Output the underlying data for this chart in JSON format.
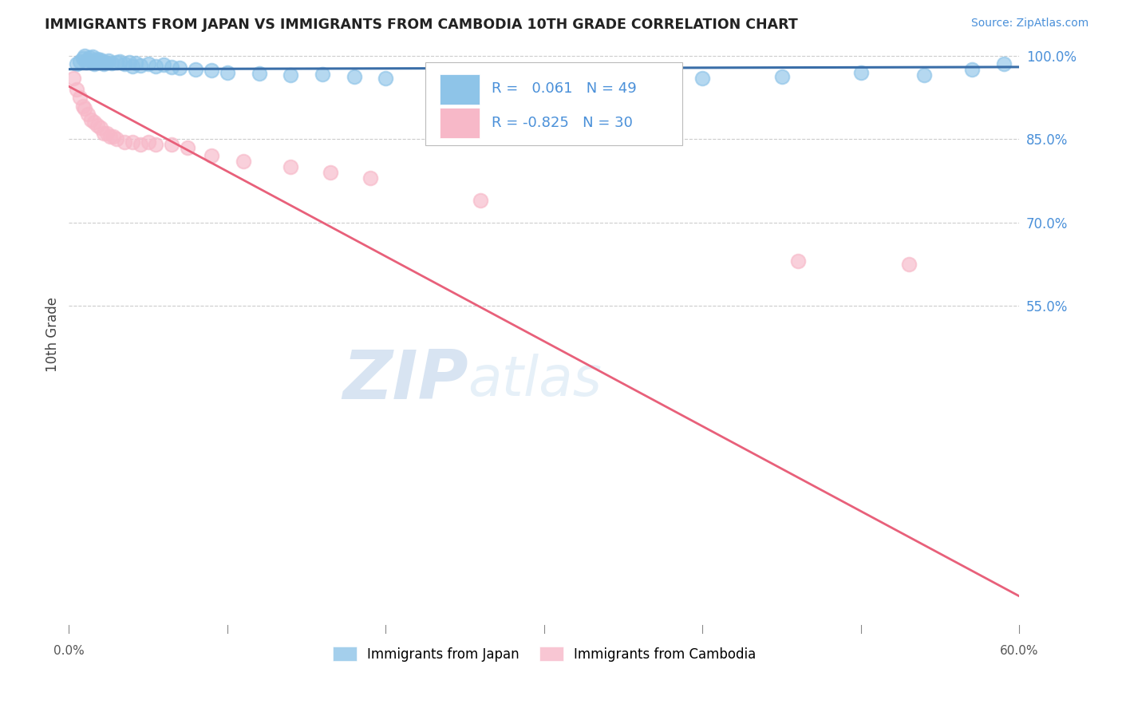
{
  "title": "IMMIGRANTS FROM JAPAN VS IMMIGRANTS FROM CAMBODIA 10TH GRADE CORRELATION CHART",
  "source": "Source: ZipAtlas.com",
  "ylabel": "10th Grade",
  "r_japan": 0.061,
  "n_japan": 49,
  "r_cambodia": -0.825,
  "n_cambodia": 30,
  "japan_color": "#8ec4e8",
  "cambodia_color": "#f7b8c8",
  "japan_line_color": "#3a6ea8",
  "cambodia_line_color": "#e8607a",
  "watermark_zip": "ZIP",
  "watermark_atlas": "atlas",
  "x_min": 0.0,
  "x_max": 0.6,
  "y_min": -0.02,
  "y_max": 1.015,
  "japan_scatter_x": [
    0.005,
    0.007,
    0.009,
    0.01,
    0.011,
    0.012,
    0.013,
    0.014,
    0.015,
    0.016,
    0.017,
    0.018,
    0.019,
    0.02,
    0.021,
    0.022,
    0.023,
    0.025,
    0.027,
    0.03,
    0.032,
    0.035,
    0.038,
    0.04,
    0.042,
    0.045,
    0.05,
    0.055,
    0.06,
    0.065,
    0.07,
    0.08,
    0.09,
    0.1,
    0.12,
    0.14,
    0.16,
    0.18,
    0.2,
    0.23,
    0.27,
    0.31,
    0.35,
    0.4,
    0.45,
    0.5,
    0.54,
    0.57,
    0.59
  ],
  "japan_scatter_y": [
    0.985,
    0.99,
    0.995,
    1.0,
    0.988,
    0.993,
    0.997,
    0.992,
    0.998,
    0.986,
    0.991,
    0.994,
    0.988,
    0.993,
    0.99,
    0.985,
    0.988,
    0.992,
    0.987,
    0.989,
    0.99,
    0.985,
    0.988,
    0.982,
    0.987,
    0.983,
    0.986,
    0.981,
    0.984,
    0.98,
    0.979,
    0.976,
    0.974,
    0.97,
    0.968,
    0.965,
    0.967,
    0.963,
    0.96,
    0.963,
    0.88,
    0.965,
    0.87,
    0.96,
    0.963,
    0.97,
    0.965,
    0.975,
    0.985
  ],
  "cambodia_scatter_x": [
    0.003,
    0.005,
    0.007,
    0.009,
    0.01,
    0.012,
    0.014,
    0.016,
    0.018,
    0.02,
    0.022,
    0.024,
    0.026,
    0.028,
    0.03,
    0.035,
    0.04,
    0.045,
    0.05,
    0.055,
    0.065,
    0.075,
    0.09,
    0.11,
    0.14,
    0.165,
    0.19,
    0.26,
    0.46,
    0.53
  ],
  "cambodia_scatter_y": [
    0.96,
    0.94,
    0.925,
    0.91,
    0.905,
    0.895,
    0.885,
    0.88,
    0.875,
    0.87,
    0.86,
    0.86,
    0.855,
    0.855,
    0.85,
    0.845,
    0.845,
    0.84,
    0.845,
    0.84,
    0.84,
    0.835,
    0.82,
    0.81,
    0.8,
    0.79,
    0.78,
    0.74,
    0.63,
    0.625
  ],
  "y_ticks": [
    0.55,
    0.7,
    0.85,
    1.0
  ],
  "y_tick_labels": [
    "55.0%",
    "70.0%",
    "85.0%",
    "100.0%"
  ],
  "x_ticks": [
    0.0,
    0.1,
    0.2,
    0.3,
    0.4,
    0.5,
    0.6
  ],
  "x_tick_labels": [
    "0.0%",
    "",
    "",
    "",
    "",
    "",
    "60.0%"
  ],
  "legend_labels": [
    "Immigrants from Japan",
    "Immigrants from Cambodia"
  ],
  "background_color": "#ffffff",
  "grid_color": "#cccccc",
  "title_color": "#222222",
  "source_color": "#4a90d9",
  "axis_tick_color": "#4a90d9",
  "ylabel_color": "#444444"
}
